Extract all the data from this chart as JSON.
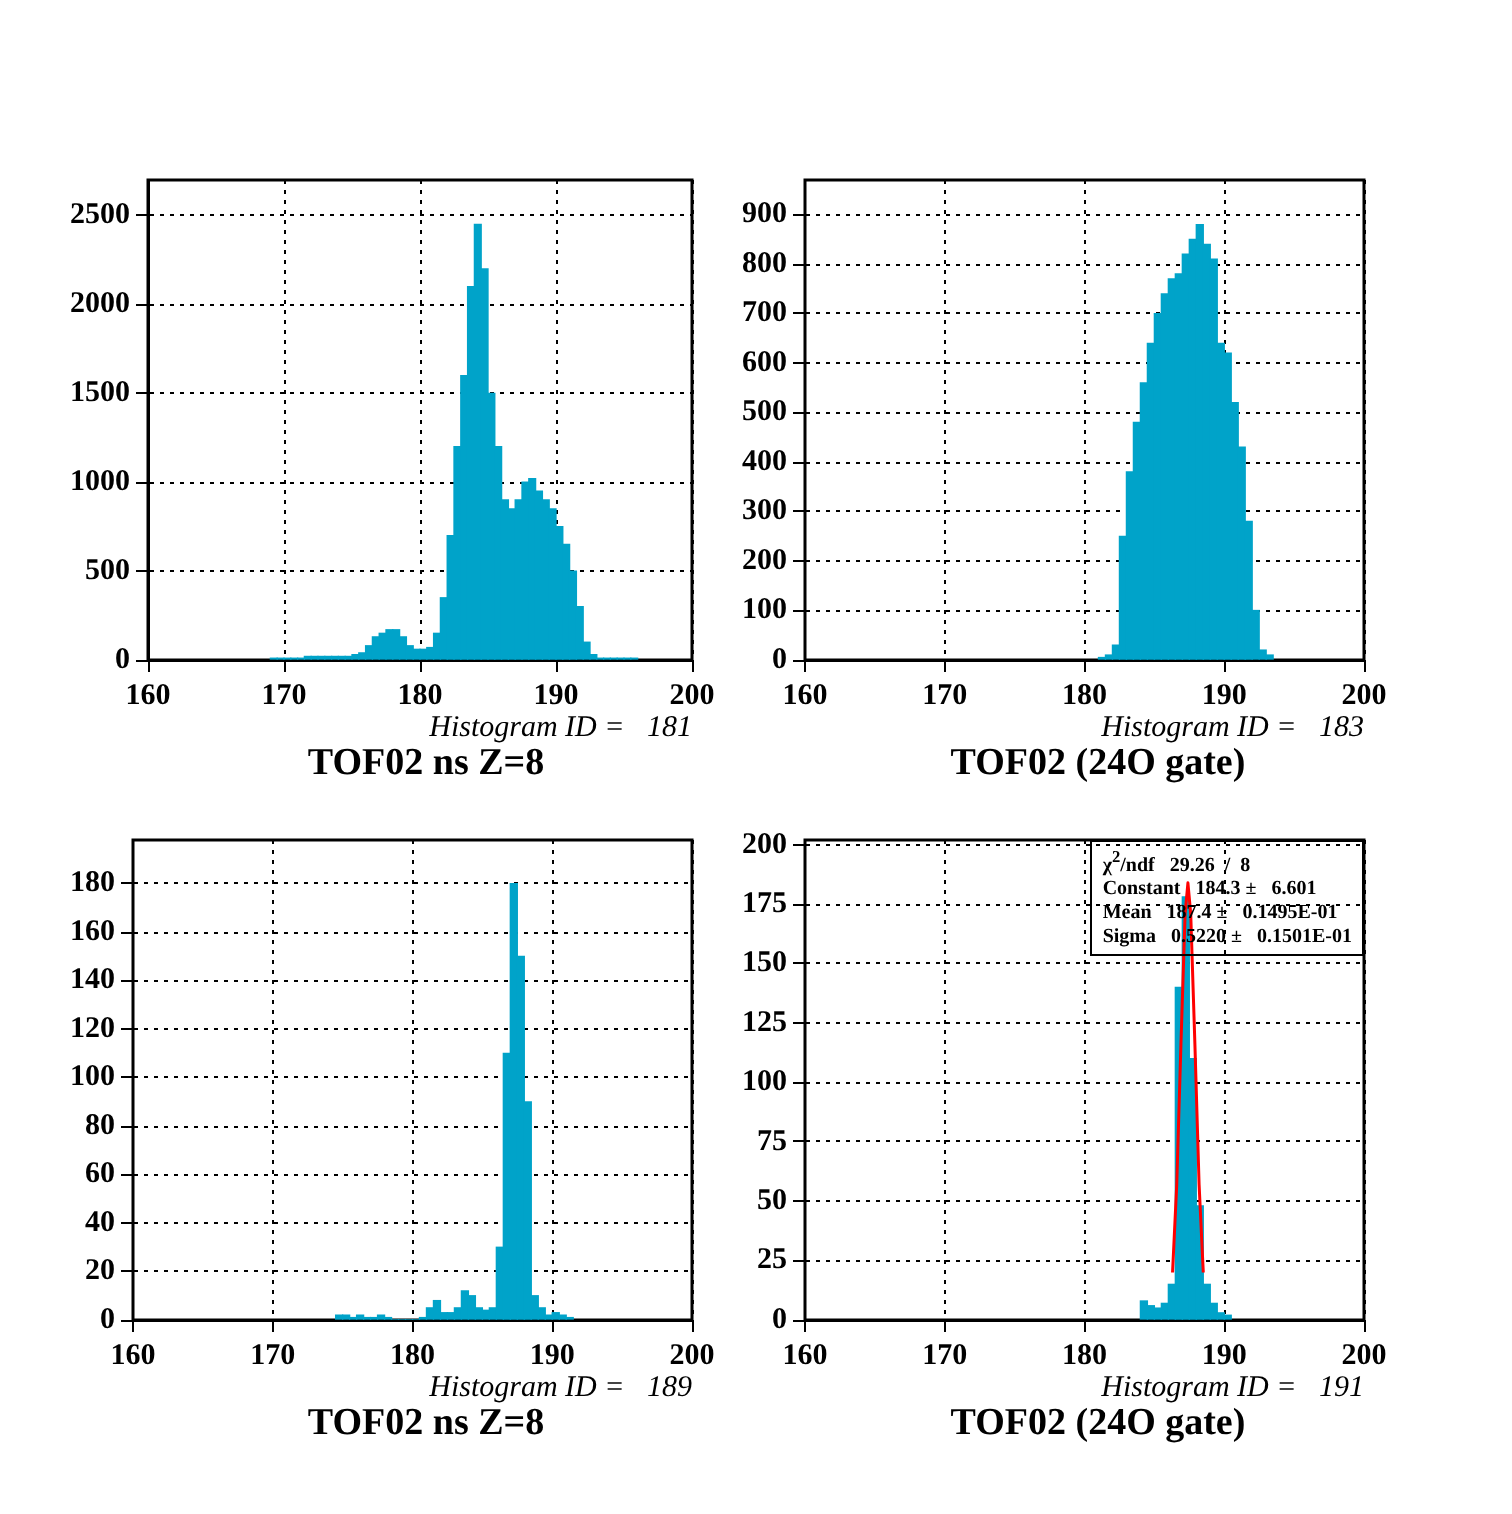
{
  "chart_data": [
    {
      "type": "histogram",
      "title": "TOF02 ns Z=8",
      "annotations": [
        "Histogram ID =   181"
      ],
      "color": "#00a3c9",
      "grid": true,
      "xlim": [
        160,
        200
      ],
      "ylim": [
        0,
        2700
      ],
      "xticks": [
        160,
        170,
        180,
        190,
        200
      ],
      "yticks": [
        0,
        500,
        1000,
        1500,
        2000,
        2500
      ],
      "bins": [
        169,
        169.5,
        170,
        170.5,
        171,
        171.5,
        172,
        172.5,
        173,
        173.5,
        174,
        174.5,
        175,
        175.5,
        176,
        176.5,
        177,
        177.5,
        178,
        178.5,
        179,
        179.5,
        180,
        180.5,
        181,
        181.5,
        182,
        182.5,
        183,
        183.5,
        184,
        184.5,
        185,
        185.5,
        186,
        186.5,
        187,
        187.5,
        188,
        188.5,
        189,
        189.5,
        190,
        190.5,
        191,
        191.5,
        192,
        192.5,
        193,
        193.5,
        194,
        194.5,
        195,
        195.5,
        196
      ],
      "values": [
        10,
        10,
        10,
        10,
        10,
        20,
        20,
        20,
        20,
        20,
        20,
        20,
        30,
        40,
        80,
        130,
        150,
        170,
        170,
        130,
        80,
        60,
        60,
        70,
        150,
        350,
        700,
        1200,
        1600,
        2100,
        2450,
        2200,
        1500,
        1200,
        900,
        850,
        900,
        1000,
        1020,
        950,
        900,
        850,
        750,
        650,
        500,
        300,
        100,
        30,
        10,
        10,
        10,
        10,
        10,
        10
      ]
    },
    {
      "type": "histogram",
      "title": "TOF02 (24O gate)",
      "annotations": [
        "Histogram ID =   183"
      ],
      "color": "#00a3c9",
      "grid": true,
      "xlim": [
        160,
        200
      ],
      "ylim": [
        0,
        970
      ],
      "xticks": [
        160,
        170,
        180,
        190,
        200
      ],
      "yticks": [
        0,
        100,
        200,
        300,
        400,
        500,
        600,
        700,
        800,
        900
      ],
      "bins": [
        181,
        181.5,
        182,
        182.5,
        183,
        183.5,
        184,
        184.5,
        185,
        185.5,
        186,
        186.5,
        187,
        187.5,
        188,
        188.5,
        189,
        189.5,
        190,
        190.5,
        191,
        191.5,
        192,
        192.5,
        193,
        193.5
      ],
      "values": [
        5,
        10,
        30,
        250,
        380,
        480,
        560,
        640,
        700,
        740,
        770,
        780,
        820,
        850,
        880,
        840,
        810,
        640,
        620,
        520,
        430,
        280,
        100,
        20,
        10
      ]
    },
    {
      "type": "histogram",
      "title": "TOF02 ns Z=8",
      "annotations": [
        "Histogram ID =   189"
      ],
      "color": "#00a3c9",
      "grid": true,
      "xlim": [
        160,
        200
      ],
      "ylim": [
        0,
        198
      ],
      "xticks": [
        160,
        170,
        180,
        190,
        200
      ],
      "yticks": [
        0,
        20,
        40,
        60,
        80,
        100,
        120,
        140,
        160,
        180
      ],
      "bins": [
        174.5,
        175,
        175.5,
        176,
        176.5,
        177,
        177.5,
        178,
        178.5,
        179,
        179.5,
        180,
        180.5,
        181,
        181.5,
        182,
        182.5,
        183,
        183.5,
        184,
        184.5,
        185,
        185.5,
        186,
        186.5,
        187,
        187.5,
        188,
        188.5,
        189,
        189.5,
        190,
        190.5,
        191,
        191.5
      ],
      "values": [
        2,
        2,
        1,
        2,
        1,
        1,
        2,
        1,
        0,
        0,
        0,
        0,
        1,
        5,
        8,
        3,
        3,
        5,
        12,
        10,
        5,
        4,
        5,
        30,
        110,
        180,
        150,
        90,
        10,
        5,
        2,
        3,
        2,
        1
      ]
    },
    {
      "type": "histogram",
      "title": "TOF02 (24O gate)",
      "annotations": [
        "Histogram ID =   191",
        "χ$^{2}$/ndf   29.26  /  8",
        "Constant   184.3 ±   6.601",
        "Mean   187.4 ±   0.1495E-01",
        "Sigma   0.5220 ±   0.1501E-01"
      ],
      "color": "#00a3c9",
      "grid": true,
      "xlim": [
        160,
        200
      ],
      "ylim": [
        0,
        202
      ],
      "xticks": [
        160,
        170,
        180,
        190,
        200
      ],
      "yticks": [
        0,
        25,
        50,
        75,
        100,
        125,
        150,
        175,
        200
      ],
      "bins": [
        184,
        184.5,
        185,
        185.5,
        186,
        186.5,
        187,
        187.5,
        188,
        188.5,
        189,
        189.5,
        190,
        190.5
      ],
      "values": [
        8,
        6,
        5,
        7,
        15,
        140,
        178,
        110,
        48,
        15,
        7,
        3,
        2
      ],
      "series": [
        {
          "type": "line",
          "color": "#ff0000",
          "marker": "none",
          "x": [
            186.3,
            186.6,
            186.9,
            187.2,
            187.4,
            187.6,
            187.9,
            188.2,
            188.5
          ],
          "values": [
            20,
            57,
            116,
            171,
            184,
            171,
            116,
            57,
            20
          ]
        }
      ]
    }
  ]
}
